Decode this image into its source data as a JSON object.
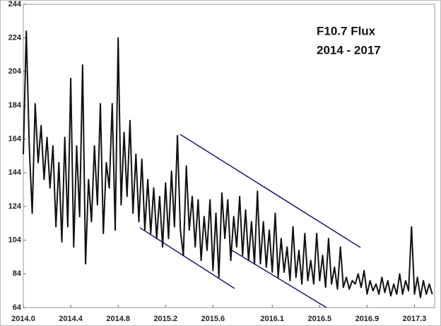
{
  "chart_data": {
    "type": "line",
    "annotations": [
      "F10.7 Flux",
      "2014 - 2017"
    ],
    "x": [
      2014.0,
      2014.025,
      2014.05,
      2014.075,
      2014.1,
      2014.125,
      2014.15,
      2014.175,
      2014.2,
      2014.225,
      2014.25,
      2014.275,
      2014.3,
      2014.325,
      2014.35,
      2014.375,
      2014.4,
      2014.425,
      2014.45,
      2014.475,
      2014.5,
      2014.525,
      2014.55,
      2014.575,
      2014.6,
      2014.625,
      2014.65,
      2014.675,
      2014.7,
      2014.725,
      2014.75,
      2014.775,
      2014.8,
      2014.825,
      2014.85,
      2014.875,
      2014.9,
      2014.925,
      2014.95,
      2014.975,
      2015.0,
      2015.025,
      2015.05,
      2015.075,
      2015.1,
      2015.125,
      2015.15,
      2015.175,
      2015.2,
      2015.225,
      2015.25,
      2015.275,
      2015.3,
      2015.325,
      2015.35,
      2015.375,
      2015.4,
      2015.425,
      2015.45,
      2015.475,
      2015.5,
      2015.525,
      2015.55,
      2015.575,
      2015.6,
      2015.625,
      2015.65,
      2015.675,
      2015.7,
      2015.725,
      2015.75,
      2015.775,
      2015.8,
      2015.825,
      2015.85,
      2015.875,
      2015.9,
      2015.925,
      2015.95,
      2015.975,
      2016.0,
      2016.025,
      2016.05,
      2016.075,
      2016.1,
      2016.125,
      2016.15,
      2016.175,
      2016.2,
      2016.225,
      2016.25,
      2016.275,
      2016.3,
      2016.325,
      2016.35,
      2016.375,
      2016.4,
      2016.425,
      2016.45,
      2016.475,
      2016.5,
      2016.525,
      2016.55,
      2016.575,
      2016.6,
      2016.625,
      2016.65,
      2016.675,
      2016.7,
      2016.725,
      2016.75,
      2016.775,
      2016.8,
      2016.825,
      2016.85,
      2016.875,
      2016.9,
      2016.925,
      2016.95,
      2016.975,
      2017.0,
      2017.025,
      2017.05,
      2017.075,
      2017.1,
      2017.125,
      2017.15,
      2017.175,
      2017.2,
      2017.225,
      2017.25,
      2017.275,
      2017.3,
      2017.325,
      2017.35,
      2017.375,
      2017.4,
      2017.425,
      2017.45
    ],
    "series": [
      {
        "name": "F10.7 Flux",
        "color": "#111111",
        "values": [
          155,
          228,
          160,
          120,
          185,
          150,
          172,
          140,
          165,
          135,
          160,
          112,
          150,
          103,
          165,
          112,
          200,
          100,
          160,
          118,
          208,
          90,
          140,
          115,
          160,
          125,
          185,
          108,
          150,
          135,
          185,
          110,
          224,
          125,
          168,
          130,
          175,
          120,
          155,
          115,
          152,
          110,
          140,
          108,
          135,
          105,
          130,
          100,
          138,
          105,
          145,
          112,
          166,
          110,
          95,
          148,
          110,
          130,
          100,
          128,
          92,
          118,
          98,
          128,
          86,
          120,
          82,
          132,
          105,
          128,
          92,
          118,
          100,
          130,
          95,
          122,
          92,
          115,
          90,
          133,
          90,
          115,
          88,
          110,
          85,
          120,
          82,
          105,
          85,
          100,
          80,
          112,
          82,
          98,
          78,
          108,
          80,
          92,
          78,
          108,
          80,
          95,
          76,
          105,
          78,
          88,
          75,
          100,
          76,
          82,
          75,
          80,
          78,
          84,
          76,
          86,
          72,
          80,
          74,
          78,
          72,
          82,
          73,
          80,
          71,
          78,
          72,
          84,
          72,
          80,
          74,
          112,
          72,
          82,
          70,
          80,
          72,
          78,
          72
        ]
      }
    ],
    "xlim": [
      2014.0,
      2017.47
    ],
    "xticks": [
      {
        "value": 2014.0,
        "label": "2014.0"
      },
      2014.4,
      2014.8,
      2015.2,
      2015.6,
      2016.1,
      2016.5,
      2016.9,
      2017.3
    ],
    "ylim": [
      64,
      244
    ],
    "yticks": [
      64,
      84,
      104,
      124,
      144,
      164,
      184,
      204,
      224,
      244
    ],
    "grid": false
  }
}
